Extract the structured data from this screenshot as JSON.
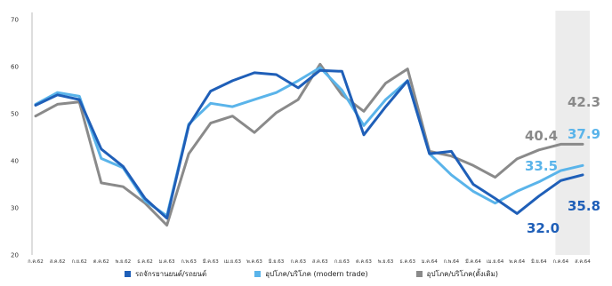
{
  "chart_data": {
    "type": "line",
    "title": "",
    "xlabel": "",
    "ylabel": "",
    "ylim": [
      20,
      70
    ],
    "yticks": [
      "20",
      "30",
      "40",
      "50",
      "60",
      "70"
    ],
    "categories": [
      "ก.ค.62",
      "ส.ค.62",
      "ก.ย.62",
      "ต.ค.62",
      "พ.ย.62",
      "ธ.ค.62",
      "ม.ค.63",
      "ก.พ.63",
      "มี.ค.63",
      "เม.ย.63",
      "พ.ค.63",
      "มิ.ย.63",
      "ก.ค.63",
      "ส.ค.63",
      "ก.ย.63",
      "ต.ค.63",
      "พ.ย.63",
      "ธ.ค.63",
      "ม.ค.64",
      "ก.พ.64",
      "มี.ค.64",
      "เม.ย.64",
      "พ.ค.64",
      "มิ.ย.64",
      "ก.ค.64",
      "ส.ค.64"
    ],
    "series": [
      {
        "name": "รถจักรยานยนต์/รถยนต์",
        "color": "#1f5fb8",
        "values": [
          51.8,
          54.0,
          53.0,
          42.5,
          38.8,
          32.0,
          27.8,
          47.5,
          54.8,
          57.0,
          58.7,
          58.3,
          55.5,
          59.2,
          59.0,
          45.5,
          51.5,
          57.0,
          41.5,
          42.0,
          35.0,
          32.0,
          28.8,
          32.5,
          35.8,
          37.0
        ]
      },
      {
        "name": "อุปโภค/บริโภค (modern trade)",
        "color": "#5ab4ea",
        "values": [
          52.0,
          54.5,
          53.7,
          40.5,
          38.5,
          31.5,
          28.3,
          47.8,
          52.2,
          51.5,
          53.0,
          54.5,
          57.0,
          59.8,
          55.0,
          47.5,
          53.0,
          57.0,
          41.5,
          37.0,
          33.5,
          31.0,
          33.5,
          35.5,
          37.9,
          39.0
        ]
      },
      {
        "name": "อุปโภค/บริโภค(ดั้งเดิม)",
        "color": "#8a8a8a",
        "values": [
          49.5,
          52.0,
          52.5,
          35.3,
          34.5,
          31.0,
          26.3,
          41.5,
          48.0,
          49.5,
          46.0,
          50.2,
          53.0,
          60.5,
          54.0,
          50.5,
          56.5,
          59.5,
          42.0,
          41.0,
          39.0,
          36.5,
          40.4,
          42.3,
          43.5,
          43.5
        ]
      }
    ],
    "annotations": [
      {
        "text": "40.4",
        "color": "#8a8a8a"
      },
      {
        "text": "42.3",
        "color": "#8a8a8a"
      },
      {
        "text": "33.5",
        "color": "#5ab4ea"
      },
      {
        "text": "37.9",
        "color": "#5ab4ea"
      },
      {
        "text": "32.0",
        "color": "#1f5fb8"
      },
      {
        "text": "35.8",
        "color": "#1f5fb8"
      }
    ],
    "highlight_band": {
      "from_index": 24,
      "to_index": 25,
      "color": "#ececec"
    },
    "grid": false,
    "legend_position": "bottom"
  }
}
